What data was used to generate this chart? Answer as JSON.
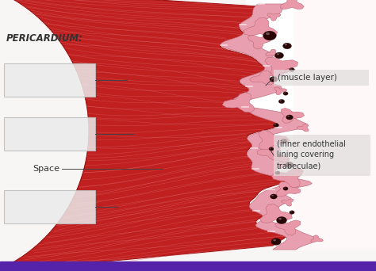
{
  "background_color": "#f8f5f5",
  "label_pericardium": "PERICARDIUM:",
  "label_space": "Space",
  "label_muscle": "(muscle layer)",
  "label_endothelial": "(inner endothelial\nlining covering\ntrabeculae)",
  "text_color": "#333333",
  "line_color": "#444444",
  "box_face": "#e8e6e6",
  "box_edge": "#bbbbbb",
  "muscle_dark": "#c02020",
  "muscle_mid": "#d84040",
  "muscle_light": "#e87070",
  "muscle_fiber": "#f0a0a0",
  "peri_outer": "#f2d8d0",
  "peri_pink": "#e8b0b0",
  "peri_white": "#faf5f5",
  "peri_thin_pink": "#e8c0c8",
  "endo_pink": "#e898a8",
  "endo_dark": "#c06070",
  "endo_hole": "#2a0505",
  "endo_hole2": "#1a0303",
  "cavity_bg": "#fce8ec",
  "bottom_bar": "#5522aa",
  "right_bg": "#ffffff"
}
